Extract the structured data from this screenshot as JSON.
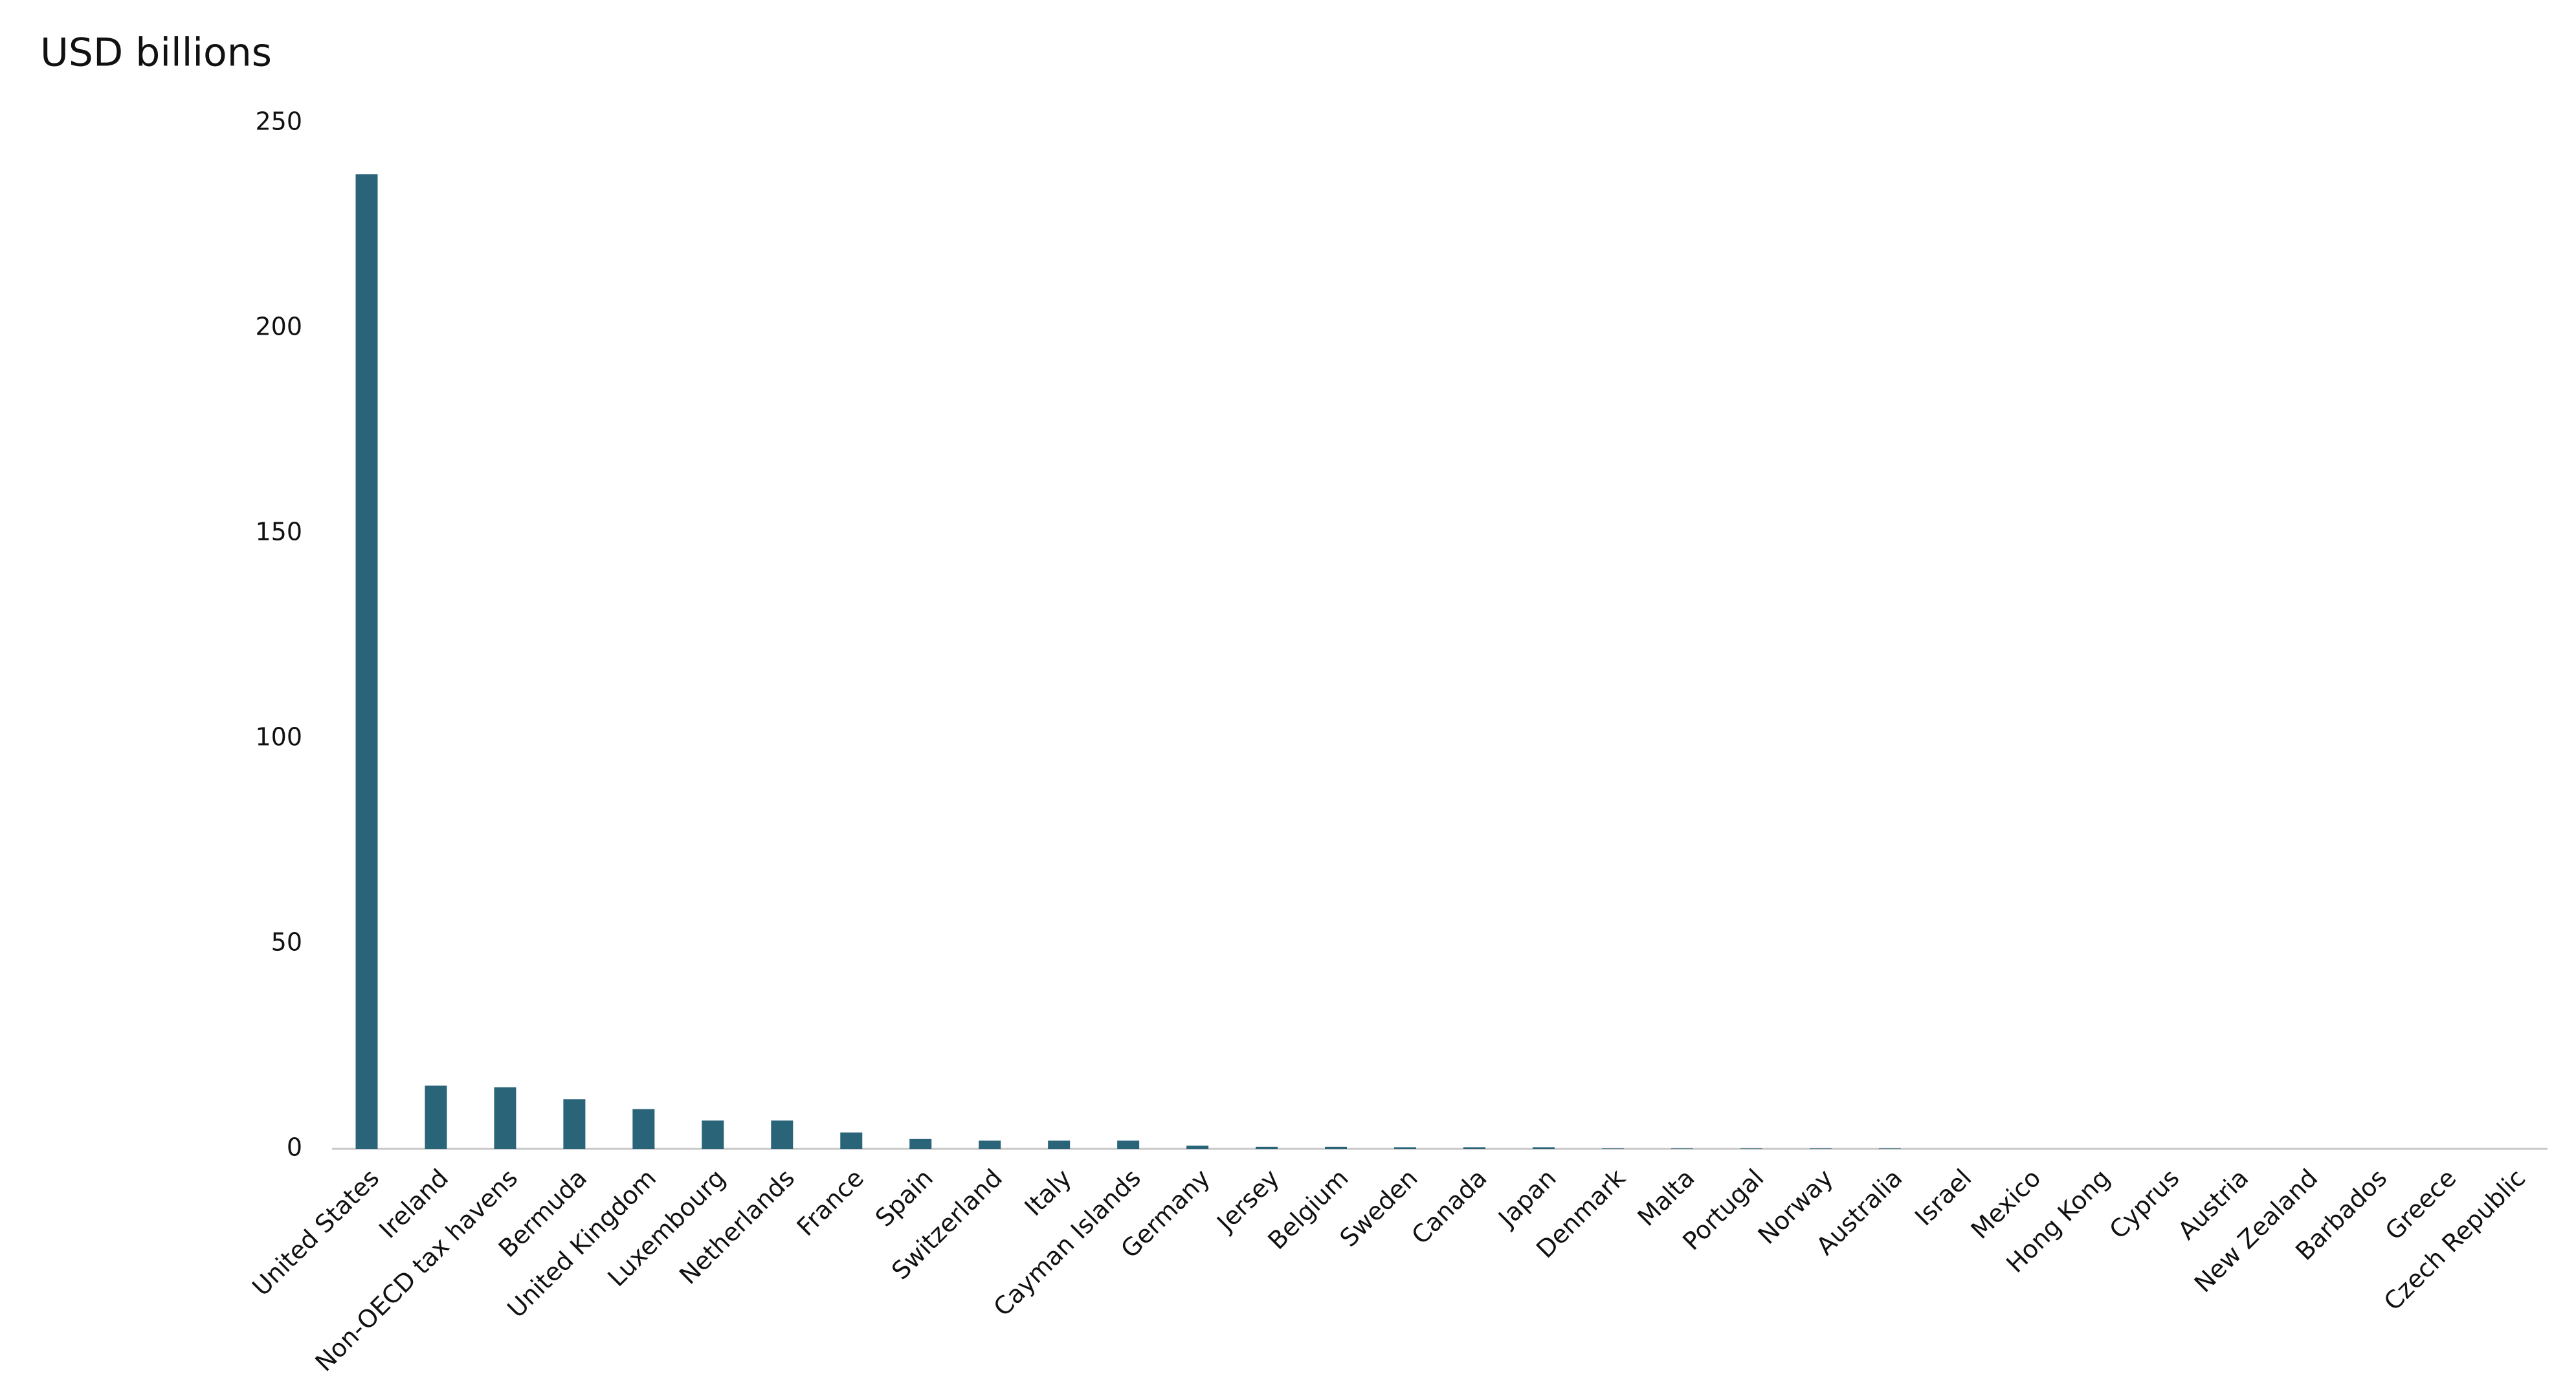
{
  "chart_data": {
    "type": "bar",
    "title": "USD billions",
    "categories": [
      "United States",
      "Ireland",
      "Non-OECD tax havens",
      "Bermuda",
      "United Kingdom",
      "Luxembourg",
      "Netherlands",
      "France",
      "Spain",
      "Switzerland",
      "Italy",
      "Cayman Islands",
      "Germany",
      "Jersey",
      "Belgium",
      "Sweden",
      "Canada",
      "Japan",
      "Denmark",
      "Malta",
      "Portugal",
      "Norway",
      "Australia",
      "Israel",
      "Mexico",
      "Hong Kong",
      "Cyprus",
      "Austria",
      "New Zealand",
      "Barbados",
      "Greece",
      "Czech Republic"
    ],
    "values": [
      237.5,
      15.4,
      15,
      12.1,
      9.7,
      6.9,
      6.9,
      4,
      2.4,
      2,
      2,
      2,
      0.8,
      0.5,
      0.5,
      0.4,
      0.4,
      0.4,
      0.1,
      0.1,
      0.1,
      0.1,
      0.1,
      0,
      0,
      0,
      0,
      0,
      0,
      0,
      0,
      0
    ],
    "color": "#2a6478",
    "ylim": [
      0,
      250
    ],
    "yticks": [
      0,
      50,
      100,
      150,
      200,
      250
    ],
    "grid": false
  }
}
